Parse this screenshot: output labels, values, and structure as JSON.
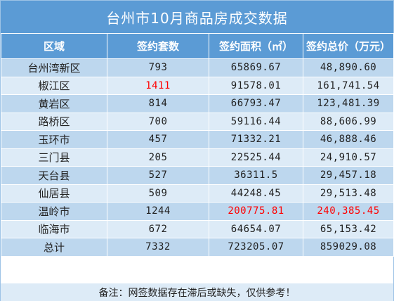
{
  "title": "台州市10月商品房成交数据",
  "headers": [
    "区域",
    "签约套数",
    "签约面积（㎡）",
    "签约总价（万元）"
  ],
  "rows": [
    {
      "region": "台州湾新区",
      "units": "793",
      "area": "65869.67",
      "price": "48,890.60"
    },
    {
      "region": "椒江区",
      "units": "1411",
      "area": "91578.01",
      "price": "161,741.54"
    },
    {
      "region": "黄岩区",
      "units": "814",
      "area": "66793.47",
      "price": "123,481.39"
    },
    {
      "region": "路桥区",
      "units": "700",
      "area": "59116.44",
      "price": "88,606.99"
    },
    {
      "region": "玉环市",
      "units": "457",
      "area": "71332.21",
      "price": "46,888.46"
    },
    {
      "region": "三门县",
      "units": "205",
      "area": "22525.44",
      "price": "24,910.57"
    },
    {
      "region": "天台县",
      "units": "527",
      "area": "36311.5",
      "price": "29,457.18"
    },
    {
      "region": "仙居县",
      "units": "509",
      "area": "44248.45",
      "price": "29,513.48"
    },
    {
      "region": "温岭市",
      "units": "1244",
      "area": "200775.81",
      "price": "240,385.45"
    },
    {
      "region": "临海市",
      "units": "672",
      "area": "64654.07",
      "price": "65,153.42"
    },
    {
      "region": "总计",
      "units": "7332",
      "area": "723205.07",
      "price": "859029.08"
    }
  ],
  "highlights": {
    "color": "#ff0000",
    "units_max_region": "椒江区",
    "area_max_region": "温岭市",
    "price_max_region": "温岭市"
  },
  "colors": {
    "header": "#5b9bd5",
    "row_odd": "#bdd7ee",
    "row_even": "#ddebf7"
  },
  "footer": "备注：网签数据存在滞后或缺失，仅供参考！"
}
